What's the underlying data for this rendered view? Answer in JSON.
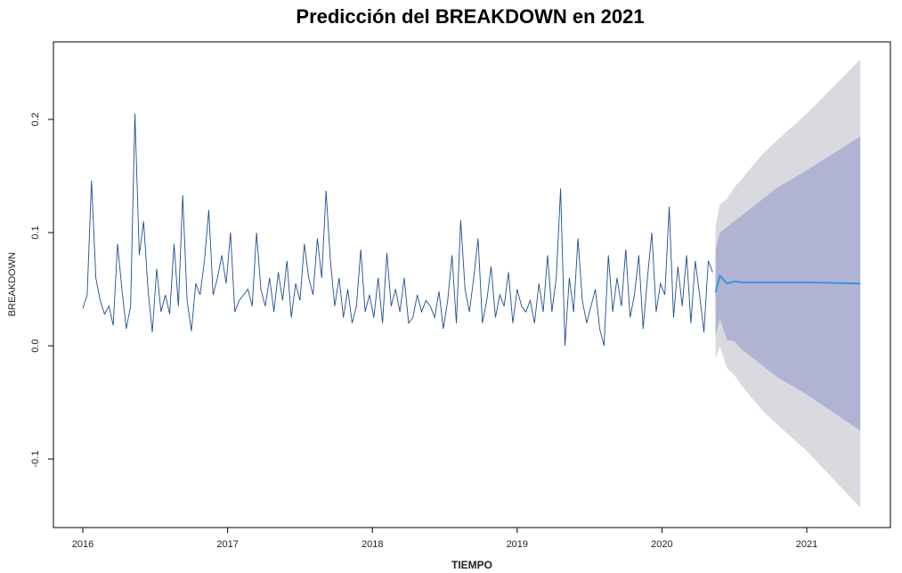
{
  "chart_data": {
    "type": "forecast",
    "title": "Predicción del BREAKDOWN en 2021",
    "x_label": "TIEMPO",
    "y_label": "BREAKDOWN",
    "xlim": [
      2015.797,
      2021.578
    ],
    "ylim": [
      -0.1606,
      0.2685
    ],
    "xticks": [
      2016,
      2017,
      2018,
      2019,
      2020,
      2021
    ],
    "yticks": [
      -0.1,
      {
        "value": 0,
        "label": "0.0"
      },
      0.1,
      0.2
    ],
    "color": "#1f4e8c",
    "x": [
      2016.0,
      2016.03,
      2016.06,
      2016.09,
      2016.12,
      2016.15,
      2016.18,
      2016.21,
      2016.24,
      2016.27,
      2016.3,
      2016.33,
      2016.36,
      2016.39,
      2016.42,
      2016.45,
      2016.48,
      2016.51,
      2016.54,
      2016.57,
      2016.6,
      2016.63,
      2016.66,
      2016.69,
      2016.72,
      2016.75,
      2016.78,
      2016.81,
      2016.84,
      2016.87,
      2016.9,
      2016.93,
      2016.96,
      2016.99,
      2017.02,
      2017.05,
      2017.08,
      2017.11,
      2017.14,
      2017.17,
      2017.2,
      2017.23,
      2017.26,
      2017.29,
      2017.32,
      2017.35,
      2017.38,
      2017.41,
      2017.44,
      2017.47,
      2017.5,
      2017.53,
      2017.56,
      2017.59,
      2017.62,
      2017.65,
      2017.68,
      2017.71,
      2017.74,
      2017.77,
      2017.8,
      2017.83,
      2017.86,
      2017.89,
      2017.92,
      2017.95,
      2017.98,
      2018.01,
      2018.04,
      2018.07,
      2018.1,
      2018.13,
      2018.16,
      2018.19,
      2018.22,
      2018.25,
      2018.28,
      2018.31,
      2018.34,
      2018.37,
      2018.4,
      2018.43,
      2018.46,
      2018.49,
      2018.52,
      2018.55,
      2018.58,
      2018.61,
      2018.64,
      2018.67,
      2018.7,
      2018.73,
      2018.76,
      2018.79,
      2018.82,
      2018.85,
      2018.88,
      2018.91,
      2018.94,
      2018.97,
      2019.0,
      2019.03,
      2019.06,
      2019.09,
      2019.12,
      2019.15,
      2019.18,
      2019.21,
      2019.24,
      2019.27,
      2019.3,
      2019.33,
      2019.36,
      2019.39,
      2019.42,
      2019.45,
      2019.48,
      2019.51,
      2019.54,
      2019.57,
      2019.6,
      2019.63,
      2019.66,
      2019.69,
      2019.72,
      2019.75,
      2019.78,
      2019.81,
      2019.84,
      2019.87,
      2019.9,
      2019.93,
      2019.96,
      2019.99,
      2020.02,
      2020.05,
      2020.08,
      2020.11,
      2020.14,
      2020.17,
      2020.2,
      2020.23,
      2020.26,
      2020.29,
      2020.32,
      2020.35
    ],
    "values": [
      0.033,
      0.045,
      0.146,
      0.06,
      0.04,
      0.028,
      0.035,
      0.018,
      0.09,
      0.05,
      0.015,
      0.035,
      0.205,
      0.08,
      0.11,
      0.05,
      0.012,
      0.068,
      0.03,
      0.045,
      0.028,
      0.09,
      0.035,
      0.133,
      0.04,
      0.013,
      0.055,
      0.045,
      0.075,
      0.12,
      0.045,
      0.06,
      0.08,
      0.055,
      0.1,
      0.03,
      0.04,
      0.045,
      0.05,
      0.035,
      0.1,
      0.05,
      0.035,
      0.06,
      0.03,
      0.065,
      0.04,
      0.075,
      0.025,
      0.055,
      0.04,
      0.09,
      0.06,
      0.045,
      0.095,
      0.06,
      0.137,
      0.075,
      0.035,
      0.06,
      0.025,
      0.05,
      0.02,
      0.035,
      0.085,
      0.03,
      0.045,
      0.025,
      0.06,
      0.02,
      0.082,
      0.035,
      0.05,
      0.03,
      0.06,
      0.02,
      0.025,
      0.045,
      0.03,
      0.04,
      0.035,
      0.025,
      0.048,
      0.015,
      0.04,
      0.08,
      0.02,
      0.111,
      0.05,
      0.03,
      0.06,
      0.095,
      0.02,
      0.04,
      0.07,
      0.025,
      0.045,
      0.035,
      0.065,
      0.02,
      0.05,
      0.035,
      0.03,
      0.04,
      0.02,
      0.055,
      0.03,
      0.08,
      0.03,
      0.06,
      0.139,
      0.0,
      0.06,
      0.03,
      0.095,
      0.04,
      0.02,
      0.035,
      0.05,
      0.015,
      0.0,
      0.08,
      0.03,
      0.06,
      0.035,
      0.085,
      0.025,
      0.045,
      0.08,
      0.015,
      0.06,
      0.1,
      0.03,
      0.055,
      0.045,
      0.123,
      0.025,
      0.07,
      0.035,
      0.08,
      0.02,
      0.075,
      0.045,
      0.012,
      0.075,
      0.065
    ],
    "forecast": {
      "x": [
        2020.37,
        2020.4,
        2020.45,
        2020.5,
        2020.55,
        2020.6,
        2020.7,
        2020.8,
        2021.0,
        2021.37
      ],
      "mean": [
        0.047,
        0.062,
        0.055,
        0.057,
        0.056,
        0.056,
        0.056,
        0.056,
        0.056,
        0.055
      ],
      "lo80": [
        0.009,
        0.024,
        0.005,
        0.004,
        -0.003,
        -0.008,
        -0.018,
        -0.028,
        -0.043,
        -0.075
      ],
      "hi80": [
        0.085,
        0.1,
        0.105,
        0.11,
        0.115,
        0.12,
        0.13,
        0.14,
        0.155,
        0.185
      ],
      "lo95": [
        -0.011,
        -0.001,
        -0.02,
        -0.026,
        -0.035,
        -0.043,
        -0.058,
        -0.07,
        -0.093,
        -0.143
      ],
      "hi95": [
        0.105,
        0.125,
        0.13,
        0.14,
        0.147,
        0.155,
        0.17,
        0.182,
        0.205,
        0.253
      ],
      "mean_color": "#2f8fe0",
      "band80_color": "#b0b4d2",
      "band95_color": "#d9d9df"
    }
  }
}
